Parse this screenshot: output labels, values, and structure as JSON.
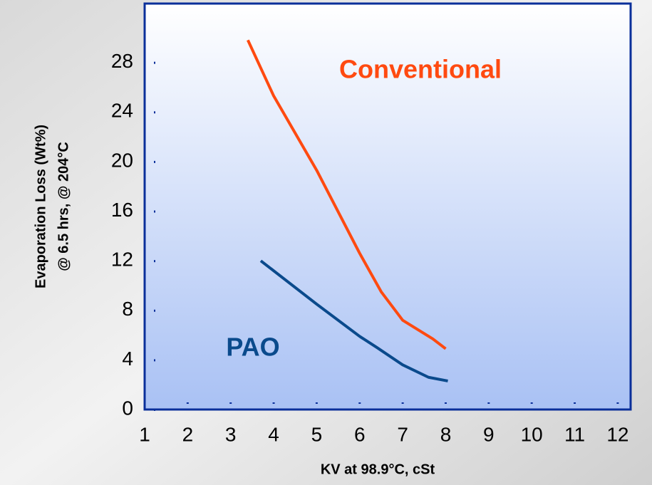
{
  "chart_data": {
    "type": "line",
    "xlabel": "KV at 98.9°C, cSt",
    "ylabel": [
      "Evaporation Loss (Wt%)",
      "@ 6.5 hrs,  @ 204°C"
    ],
    "series": [
      {
        "name": "Conventional",
        "color": "#ff4a10",
        "x": [
          3.4,
          4,
          5,
          6,
          6.5,
          7,
          7.7,
          8.0
        ],
        "values": [
          29.8,
          25.3,
          19.3,
          12.6,
          9.5,
          7.2,
          5.7,
          4.9
        ]
      },
      {
        "name": "PAO",
        "color": "#0a4a8c",
        "x": [
          3.7,
          5,
          6,
          6.4,
          7,
          7.6,
          8.05
        ],
        "values": [
          12,
          8.5,
          5.9,
          5.0,
          3.6,
          2.6,
          2.3
        ]
      }
    ],
    "xlim": [
      1,
      12.3
    ],
    "xticks": [
      1,
      2,
      3,
      4,
      5,
      6,
      7,
      8,
      9,
      10,
      11,
      12
    ],
    "ylim": [
      0,
      32.75
    ],
    "yticks": [
      0,
      4,
      8,
      12,
      16,
      20,
      24,
      28
    ]
  }
}
